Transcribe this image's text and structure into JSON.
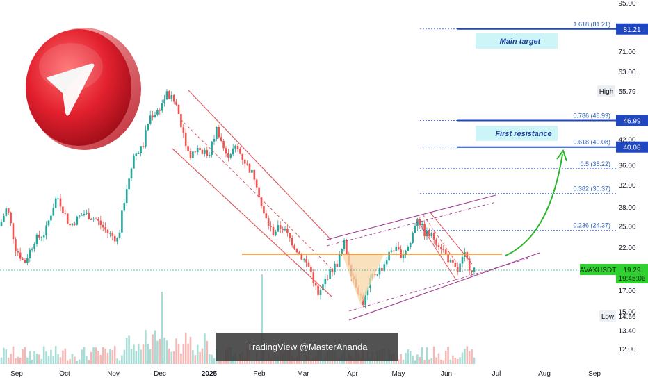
{
  "chart_data": {
    "type": "candlestick",
    "symbol": "AVAXUSDT",
    "last_price": "19.29",
    "countdown": "19:45:06",
    "high_label": "High",
    "high_value": "55.79",
    "low_label": "Low",
    "low_value": "14.66",
    "scale": "log",
    "x_ticks": [
      "Sep",
      "Oct",
      "Nov",
      "Dec",
      "2025",
      "Feb",
      "Mar",
      "Apr",
      "May",
      "Jun",
      "Jul",
      "Aug",
      "Sep"
    ],
    "y_ticks": [
      "95.00",
      "81.21",
      "71.00",
      "63.00",
      "55.79",
      "46.99",
      "42.00",
      "40.08",
      "36.00",
      "32.00",
      "28.00",
      "25.00",
      "22.00",
      "19.29",
      "17.00",
      "15.00",
      "14.66",
      "13.40",
      "12.00"
    ],
    "fib_levels": [
      {
        "ratio": "1.618",
        "price": 81.21,
        "label": "1.618 (81.21)",
        "tag": "81.21",
        "major": true
      },
      {
        "ratio": "0.786",
        "price": 46.99,
        "label": "0.786 (46.99)",
        "tag": "46.99",
        "major": true
      },
      {
        "ratio": "0.618",
        "price": 40.08,
        "label": "0.618 (40.08)",
        "tag": "40.08",
        "major": true
      },
      {
        "ratio": "0.5",
        "price": 35.22,
        "label": "0.5 (35.22)",
        "major": false
      },
      {
        "ratio": "0.382",
        "price": 30.37,
        "label": "0.382 (30.37)",
        "major": false
      },
      {
        "ratio": "0.236",
        "price": 24.37,
        "label": "0.236 (24.37)",
        "major": false
      }
    ],
    "annotations": {
      "main_target": "Main target",
      "first_resistance": "First resistance"
    },
    "support_level": 20.6,
    "watermark": "TradingView @MasterAnanda",
    "grid": false,
    "colors": {
      "up": "#26a69a",
      "down": "#ef5350",
      "channel": "#e05a64",
      "rising_channel": "#a23b8f",
      "support": "#f28a1e",
      "fib": "#2962ff",
      "arrow": "#2bb52b",
      "last_price_tag": "#2ed12e",
      "fib_tag": "#1f47c2"
    }
  }
}
